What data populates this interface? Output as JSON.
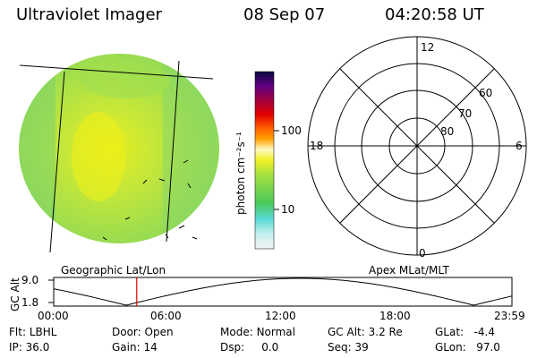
{
  "header": {
    "title": "Ultraviolet Imager",
    "date": "08 Sep 07",
    "time": "04:20:58 UT"
  },
  "colorbar": {
    "unit_label": "photon cm⁻²s⁻¹",
    "ticks": [
      "100",
      "10"
    ]
  },
  "polar": {
    "hour_labels": {
      "top": "12",
      "left": "18",
      "right": "6",
      "bottom": "0"
    },
    "lat_labels": [
      "60",
      "70",
      "80"
    ]
  },
  "orbit": {
    "left_caption": "Geographic Lat/Lon",
    "right_caption": "Apex MLat/MLT",
    "y_label": "GC Alt",
    "y_ticks": [
      "9.0",
      "1.8"
    ],
    "x_ticks": [
      "00:00",
      "06:00",
      "12:00",
      "18:00",
      "23:59"
    ],
    "current_time_hours": 4.35
  },
  "status": {
    "row1": [
      {
        "key": "Flt:",
        "val": "LBHL"
      },
      {
        "key": "Door:",
        "val": "Open"
      },
      {
        "key": "Mode:",
        "val": "Normal"
      },
      {
        "key": "GC Alt:",
        "val": "3.2 Re"
      },
      {
        "key": "GLat:",
        "val": "-4.4"
      }
    ],
    "row2": [
      {
        "key": "IP:",
        "val": "36.0"
      },
      {
        "key": "Gain:",
        "val": "14"
      },
      {
        "key": "Dsp:",
        "val": "0.0"
      },
      {
        "key": "Seq:",
        "val": "39"
      },
      {
        "key": "GLon:",
        "val": "97.0"
      }
    ]
  }
}
